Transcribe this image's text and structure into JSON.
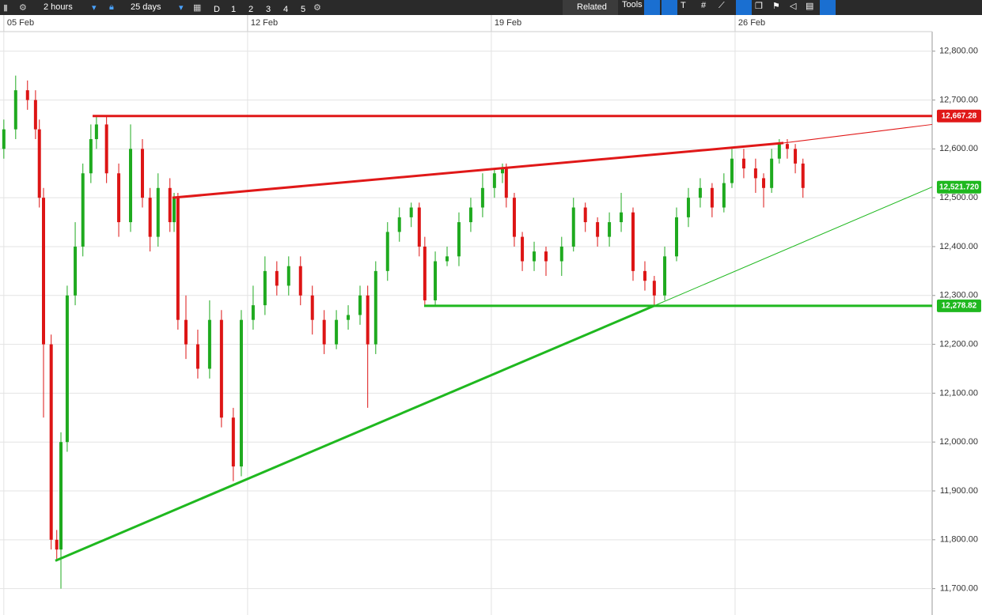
{
  "toolbar": {
    "interval": "2 hours",
    "range": "25 days",
    "periods": [
      "D",
      "1",
      "2",
      "3",
      "4",
      "5"
    ],
    "related": "Related",
    "tools": "Tools"
  },
  "chart_data": {
    "type": "candlestick",
    "x": [
      0,
      0.34,
      0.68,
      0.91,
      1.02,
      1.14,
      1.36,
      1.52,
      1.64,
      1.82,
      2.05,
      2.27,
      2.5,
      2.66,
      2.95,
      3.3,
      3.64,
      3.98,
      4.2,
      4.43,
      4.77,
      4.89,
      5,
      5.23,
      5.57,
      5.91,
      6.25,
      6.59,
      6.82,
      7.16,
      7.5,
      7.84,
      8.18,
      8.52,
      8.86,
      9.2,
      9.55,
      9.89,
      10.23,
      10.45,
      10.68,
      11.02,
      11.36,
      11.7,
      11.93,
      12.09,
      12.39,
      12.73,
      13.07,
      13.41,
      13.75,
      14.09,
      14.32,
      14.43,
      14.66,
      14.89,
      15.23,
      15.57,
      16.02,
      16.36,
      16.7,
      17.05,
      17.39,
      17.73,
      18.07,
      18.41,
      18.68,
      18.98,
      19.32,
      19.66,
      20,
      20.34,
      20.68,
      20.91,
      21.25,
      21.59,
      21.82,
      22.05,
      22.27,
      22.5,
      22.73,
      22.95
    ],
    "open": [
      12600,
      12640,
      12720,
      12700,
      12640,
      12500,
      12200,
      11800,
      11780,
      12000,
      12300,
      12400,
      12550,
      12620,
      12650,
      12550,
      12450,
      12600,
      12500,
      12420,
      12520,
      12450,
      12500,
      12250,
      12200,
      12150,
      12250,
      12050,
      11950,
      12250,
      12280,
      12350,
      12320,
      12360,
      12300,
      12250,
      12200,
      12250,
      12260,
      12300,
      12200,
      12350,
      12430,
      12460,
      12480,
      12400,
      12290,
      12370,
      12380,
      12450,
      12480,
      12520,
      12550,
      12560,
      12500,
      12420,
      12370,
      12390,
      12370,
      12400,
      12480,
      12450,
      12420,
      12450,
      12470,
      12350,
      12330,
      12300,
      12380,
      12460,
      12500,
      12520,
      12480,
      12530,
      12580,
      12560,
      12540,
      12520,
      12580,
      12610,
      12600,
      12570
    ],
    "high": [
      12660,
      12750,
      12740,
      12720,
      12660,
      12520,
      12220,
      11820,
      12020,
      12320,
      12450,
      12570,
      12650,
      12667,
      12667,
      12570,
      12650,
      12620,
      12520,
      12550,
      12540,
      12510,
      12510,
      12300,
      12230,
      12290,
      12270,
      12070,
      12270,
      12320,
      12380,
      12370,
      12380,
      12380,
      12320,
      12270,
      12270,
      12280,
      12320,
      12320,
      12370,
      12450,
      12480,
      12490,
      12490,
      12420,
      12390,
      12400,
      12470,
      12500,
      12550,
      12560,
      12570,
      12570,
      12510,
      12430,
      12410,
      12400,
      12420,
      12500,
      12490,
      12460,
      12470,
      12510,
      12480,
      12370,
      12340,
      12400,
      12480,
      12520,
      12540,
      12530,
      12550,
      12600,
      12600,
      12580,
      12550,
      12600,
      12620,
      12620,
      12610,
      12580
    ],
    "low": [
      12580,
      12620,
      12680,
      12620,
      12480,
      12050,
      11780,
      11760,
      11700,
      11980,
      12280,
      12380,
      12530,
      12600,
      12530,
      12420,
      12430,
      12480,
      12390,
      12400,
      12430,
      12430,
      12230,
      12170,
      12130,
      12130,
      12030,
      11920,
      11930,
      12230,
      12260,
      12300,
      12300,
      12280,
      12220,
      12180,
      12190,
      12230,
      12240,
      12070,
      12180,
      12330,
      12410,
      12440,
      12380,
      12279,
      12279,
      12360,
      12360,
      12430,
      12460,
      12500,
      12530,
      12480,
      12400,
      12350,
      12350,
      12340,
      12340,
      12390,
      12430,
      12400,
      12400,
      12430,
      12330,
      12310,
      12279,
      12290,
      12370,
      12440,
      12480,
      12460,
      12470,
      12520,
      12540,
      12510,
      12480,
      12510,
      12570,
      12580,
      12550,
      12500
    ],
    "close": [
      12640,
      12720,
      12700,
      12640,
      12500,
      12200,
      11800,
      11780,
      12000,
      12300,
      12400,
      12550,
      12620,
      12650,
      12550,
      12450,
      12600,
      12500,
      12420,
      12520,
      12450,
      12500,
      12250,
      12200,
      12150,
      12250,
      12050,
      11950,
      12250,
      12280,
      12350,
      12320,
      12360,
      12300,
      12250,
      12200,
      12250,
      12260,
      12300,
      12200,
      12350,
      12430,
      12460,
      12480,
      12400,
      12290,
      12370,
      12380,
      12450,
      12480,
      12520,
      12550,
      12560,
      12500,
      12420,
      12370,
      12390,
      12370,
      12400,
      12480,
      12450,
      12420,
      12450,
      12470,
      12350,
      12330,
      12300,
      12380,
      12460,
      12500,
      12520,
      12480,
      12530,
      12580,
      12560,
      12540,
      12520,
      12580,
      12610,
      12600,
      12570,
      12520
    ],
    "up_color": "#1faa1f",
    "down_color": "#dd1515",
    "xlim": [
      -0.11,
      26.66
    ],
    "ylim": [
      11646,
      12840
    ],
    "xticks": [
      {
        "value": 0,
        "label": "05 Feb"
      },
      {
        "value": 7,
        "label": "12 Feb"
      },
      {
        "value": 14,
        "label": "19 Feb"
      },
      {
        "value": 21,
        "label": "26 Feb"
      }
    ],
    "yticks": [
      {
        "value": 11700,
        "label": "11,700.00"
      },
      {
        "value": 11800,
        "label": "11,800.00"
      },
      {
        "value": 11900,
        "label": "11,900.00"
      },
      {
        "value": 12000,
        "label": "12,000.00"
      },
      {
        "value": 12100,
        "label": "12,100.00"
      },
      {
        "value": 12200,
        "label": "12,200.00"
      },
      {
        "value": 12300,
        "label": "12,300.00"
      },
      {
        "value": 12400,
        "label": "12,400.00"
      },
      {
        "value": 12500,
        "label": "12,500.00"
      },
      {
        "value": 12600,
        "label": "12,600.00"
      },
      {
        "value": 12700,
        "label": "12,700.00"
      },
      {
        "value": 12800,
        "label": "12,800.00"
      }
    ],
    "grid": true,
    "lines": [
      {
        "color": "#e01818",
        "width": 3,
        "x": [
          2.55,
          26.66
        ],
        "y": [
          12667.28,
          12667.28
        ]
      },
      {
        "color": "#e01818",
        "width": 3,
        "x": [
          4.84,
          22.39
        ],
        "y": [
          12500,
          12612
        ]
      },
      {
        "color": "#e01818",
        "width": 1,
        "x": [
          22.39,
          26.66
        ],
        "y": [
          12612,
          12650
        ]
      },
      {
        "color": "#1fb81f",
        "width": 3,
        "x": [
          1.48,
          18.68
        ],
        "y": [
          11757,
          12279
        ]
      },
      {
        "color": "#1fb81f",
        "width": 1,
        "x": [
          18.68,
          26.66
        ],
        "y": [
          12279,
          12522
        ]
      },
      {
        "color": "#1fb81f",
        "width": 3,
        "x": [
          12.07,
          26.66
        ],
        "y": [
          12278.82,
          12278.82
        ]
      }
    ],
    "price_labels": [
      {
        "value": 12667.28,
        "label": "12,667.28",
        "color": "#e01818"
      },
      {
        "value": 12521.72,
        "label": "12,521.720",
        "color": "#1fb81f"
      },
      {
        "value": 12278.82,
        "label": "12,278.82",
        "color": "#1fb81f"
      }
    ]
  }
}
